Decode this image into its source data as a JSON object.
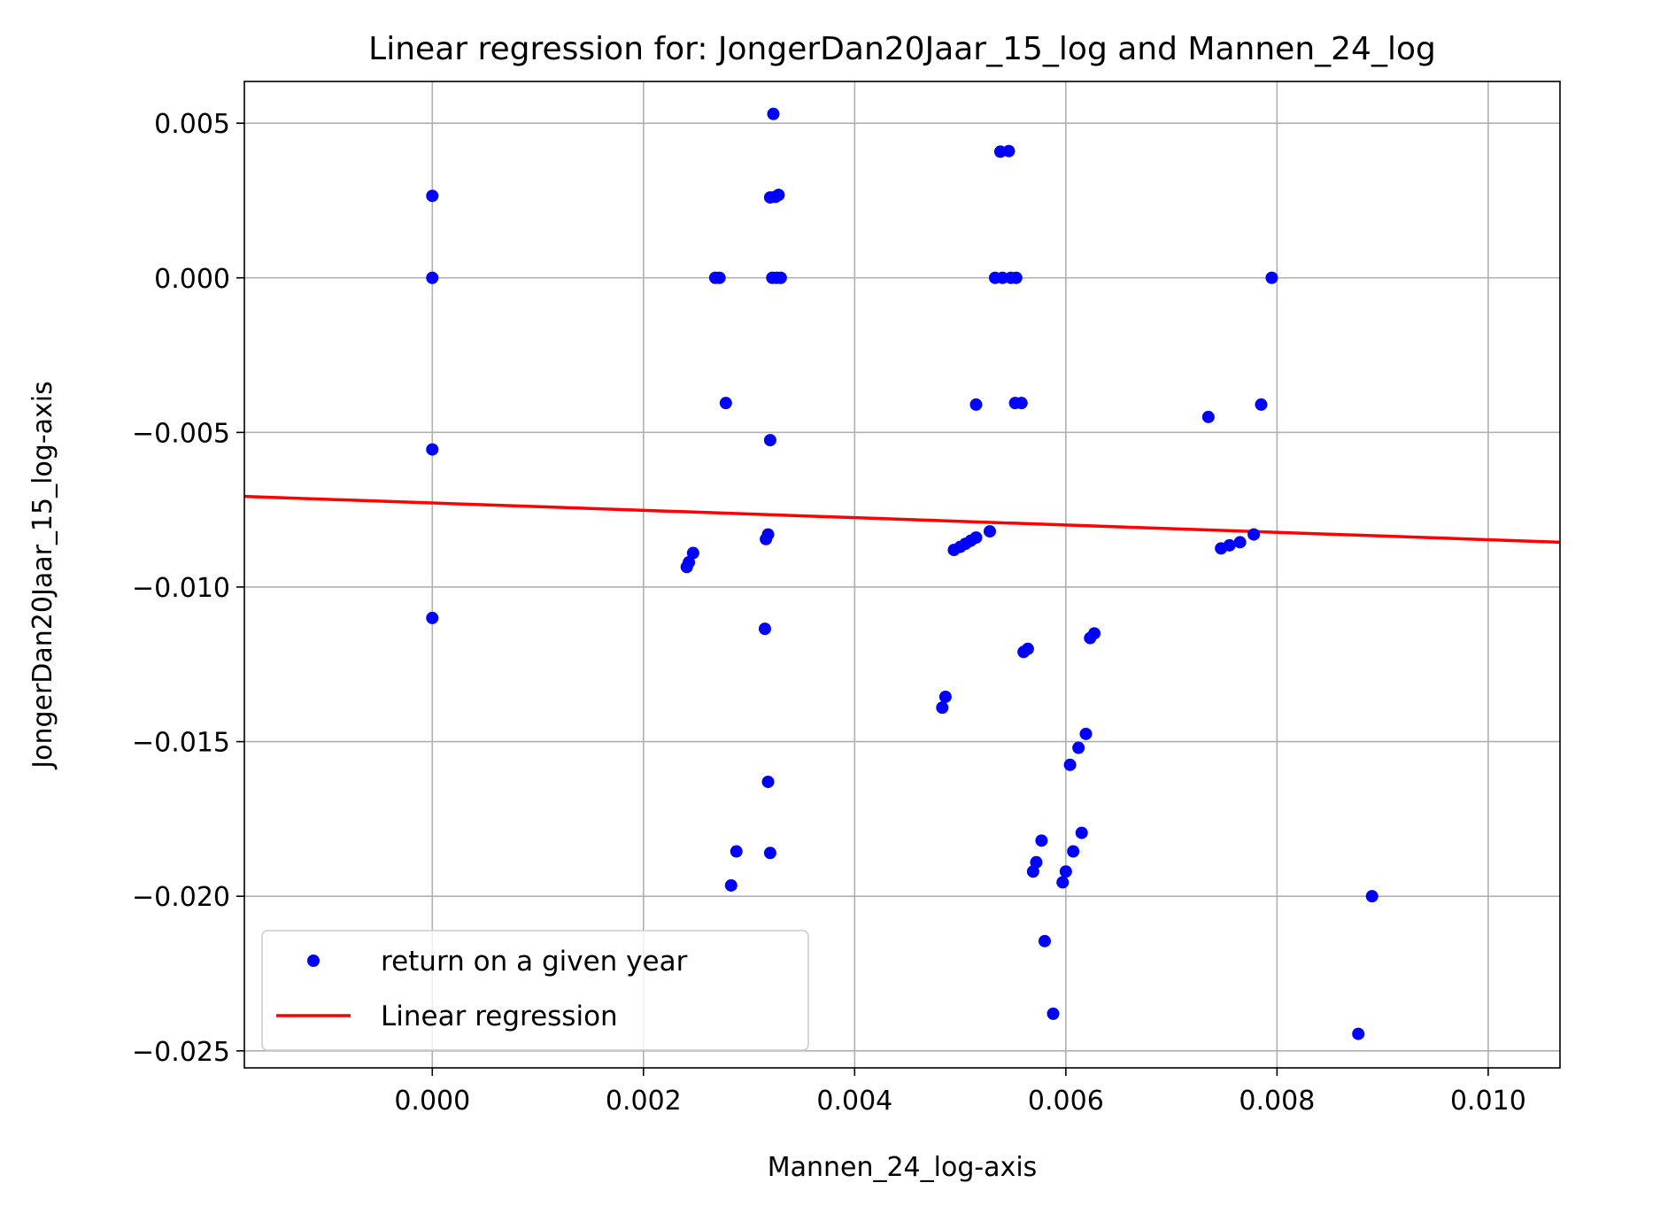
{
  "chart_data": {
    "type": "scatter",
    "title": "Linear regression for: JongerDan20Jaar_15_log and Mannen_24_log",
    "xlabel": "Mannen_24_log-axis",
    "ylabel": "JongerDan20Jaar_15_log-axis",
    "xlim": [
      -0.00178,
      0.01068
    ],
    "ylim": [
      -0.02555,
      0.00635
    ],
    "x_ticks": [
      0.0,
      0.002,
      0.004,
      0.006,
      0.008,
      0.01
    ],
    "x_tick_labels": [
      "0.000",
      "0.002",
      "0.004",
      "0.006",
      "0.008",
      "0.010"
    ],
    "y_ticks": [
      0.005,
      0.0,
      -0.005,
      -0.01,
      -0.015,
      -0.02,
      -0.025
    ],
    "y_tick_labels": [
      "0.005",
      "0.000",
      "−0.005",
      "−0.010",
      "−0.015",
      "−0.020",
      "−0.025"
    ],
    "grid": true,
    "legend_position": "lower-left",
    "series": [
      {
        "name": "return on a given year",
        "type": "scatter",
        "color": "#0000ff",
        "points": [
          [
            0.0,
            0.00265
          ],
          [
            0.0,
            0.0
          ],
          [
            0.0,
            -0.00555
          ],
          [
            0.0,
            -0.011
          ],
          [
            0.00241,
            -0.00935
          ],
          [
            0.00243,
            -0.0092
          ],
          [
            0.00247,
            -0.0089
          ],
          [
            0.00268,
            0.0
          ],
          [
            0.00272,
            0.0
          ],
          [
            0.00278,
            -0.00405
          ],
          [
            0.00283,
            -0.01965
          ],
          [
            0.00288,
            -0.01855
          ],
          [
            0.00315,
            -0.01135
          ],
          [
            0.00316,
            -0.00845
          ],
          [
            0.00318,
            -0.0083
          ],
          [
            0.00318,
            -0.0163
          ],
          [
            0.0032,
            -0.0186
          ],
          [
            0.0032,
            -0.00525
          ],
          [
            0.0032,
            0.0026
          ],
          [
            0.00323,
            0.0053
          ],
          [
            0.00325,
            0.00262
          ],
          [
            0.00328,
            0.00268
          ],
          [
            0.00322,
            0.0
          ],
          [
            0.00326,
            0.0
          ],
          [
            0.0033,
            0.0
          ],
          [
            0.00483,
            -0.0139
          ],
          [
            0.00486,
            -0.01355
          ],
          [
            0.00494,
            -0.0088
          ],
          [
            0.005,
            -0.0087
          ],
          [
            0.00505,
            -0.0086
          ],
          [
            0.0051,
            -0.0085
          ],
          [
            0.00515,
            -0.0084
          ],
          [
            0.00515,
            -0.0041
          ],
          [
            0.00528,
            -0.0082
          ],
          [
            0.00533,
            0.0
          ],
          [
            0.0054,
            0.0
          ],
          [
            0.00548,
            0.0
          ],
          [
            0.00553,
            0.0
          ],
          [
            0.00538,
            0.00408
          ],
          [
            0.00546,
            0.0041
          ],
          [
            0.00552,
            -0.00405
          ],
          [
            0.00558,
            -0.00405
          ],
          [
            0.0056,
            -0.0121
          ],
          [
            0.00564,
            -0.012
          ],
          [
            0.00569,
            -0.0192
          ],
          [
            0.00572,
            -0.0189
          ],
          [
            0.00577,
            -0.0182
          ],
          [
            0.0058,
            -0.02145
          ],
          [
            0.00588,
            -0.0238
          ],
          [
            0.00597,
            -0.01955
          ],
          [
            0.006,
            -0.0192
          ],
          [
            0.00604,
            -0.01575
          ],
          [
            0.00607,
            -0.01855
          ],
          [
            0.00612,
            -0.0152
          ],
          [
            0.00615,
            -0.01795
          ],
          [
            0.00619,
            -0.01475
          ],
          [
            0.00623,
            -0.01165
          ],
          [
            0.00627,
            -0.0115
          ],
          [
            0.00735,
            -0.0045
          ],
          [
            0.00747,
            -0.00875
          ],
          [
            0.00755,
            -0.00865
          ],
          [
            0.00765,
            -0.00855
          ],
          [
            0.00778,
            -0.0083
          ],
          [
            0.00785,
            -0.0041
          ],
          [
            0.00795,
            0.0
          ],
          [
            0.00877,
            -0.02445
          ],
          [
            0.0089,
            -0.02
          ]
        ]
      },
      {
        "name": "Linear regression",
        "type": "line",
        "color": "#ff0000",
        "points": [
          [
            -0.00178,
            -0.00707
          ],
          [
            0.01068,
            -0.00855
          ]
        ]
      }
    ]
  }
}
